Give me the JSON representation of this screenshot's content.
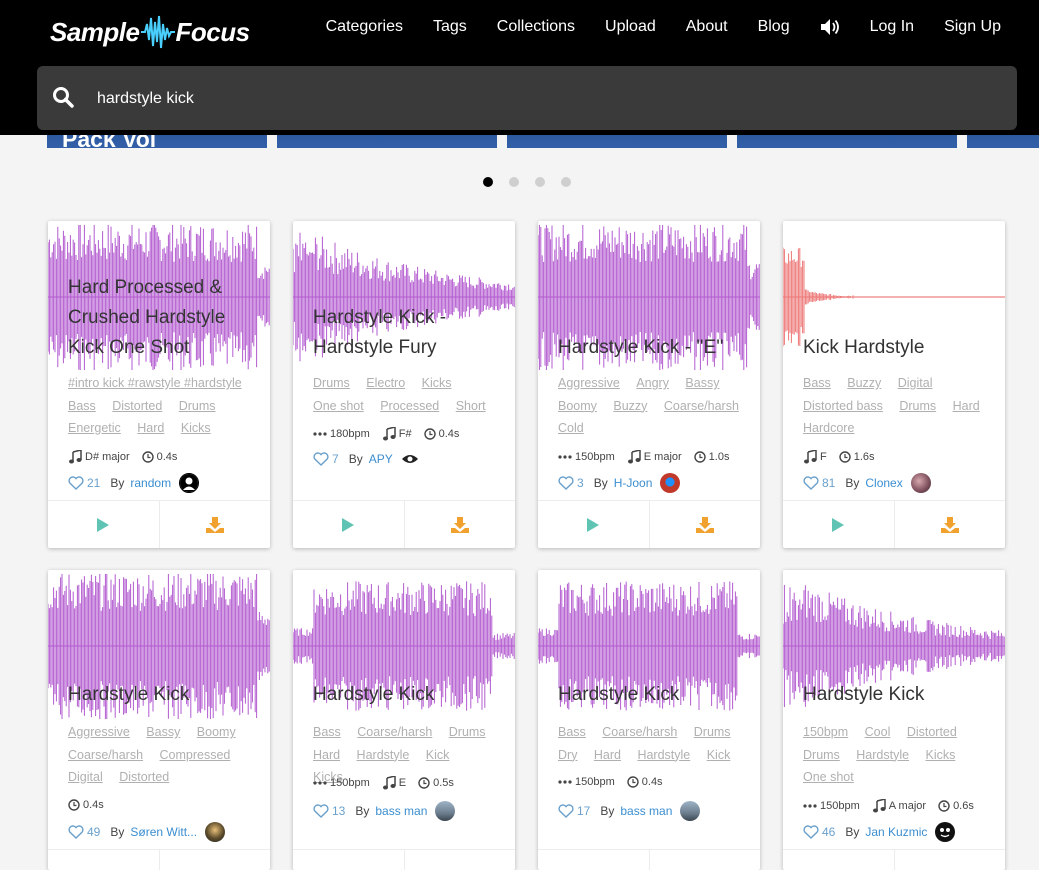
{
  "nav": {
    "logo_left": "Sample",
    "logo_right": "Focus",
    "links": [
      "Categories",
      "Tags",
      "Collections",
      "Upload",
      "About",
      "Blog"
    ],
    "login": "Log In",
    "signup": "Sign Up"
  },
  "search": {
    "value": "hardstyle kick"
  },
  "carousel": {
    "partial_text": "Pack Vol",
    "dots": 4,
    "active_dot": 1
  },
  "colors": {
    "wave": "#a339c6",
    "wave_red": "#e85a5a",
    "play": "#5fc4b3",
    "download": "#f0a12e",
    "like": "#6aa0cc",
    "author": "#3b8ed0"
  },
  "cards": [
    {
      "title": "Hard Processed & Crushed Hardstyle Kick One Shot",
      "tags": [
        "#intro kick #rawstyle #hardstyle",
        "Bass",
        "Distorted",
        "Drums",
        "Energetic",
        "Hard",
        "Kicks"
      ],
      "bpm": "",
      "key": "D# major",
      "duration": "0.4s",
      "likes": "21",
      "author": "random",
      "avatar": "user-icon"
    },
    {
      "title": "Hardstyle Kick - Hardstyle Fury",
      "tags": [
        "Drums",
        "Electro",
        "Kicks",
        "One shot",
        "Processed",
        "Short"
      ],
      "bpm": "180bpm",
      "key": "F#",
      "duration": "0.4s",
      "likes": "7",
      "author": "APY",
      "avatar": "logo-avatar"
    },
    {
      "title": "Hardstyle Kick - ''E''",
      "tags": [
        "Aggressive",
        "Angry",
        "Bassy",
        "Boomy",
        "Buzzy",
        "Coarse/harsh",
        "Cold"
      ],
      "bpm": "150bpm",
      "key": "E major",
      "duration": "1.0s",
      "likes": "3",
      "author": "H-Joon",
      "avatar": "red-avatar"
    },
    {
      "title": "Kick Hardstyle",
      "tags": [
        "Bass",
        "Buzzy",
        "Digital",
        "Distorted bass",
        "Drums",
        "Hard",
        "Hardcore"
      ],
      "bpm": "",
      "key": "F",
      "duration": "1.6s",
      "likes": "81",
      "author": "Clonex",
      "avatar": "photo-avatar"
    },
    {
      "title": "Hardstyle Kick",
      "tags": [
        "Aggressive",
        "Bassy",
        "Boomy",
        "Coarse/harsh",
        "Compressed",
        "Digital",
        "Distorted"
      ],
      "bpm": "",
      "key": "",
      "duration": "0.4s",
      "likes": "49",
      "author": "Søren Witt...",
      "avatar": "photo-avatar"
    },
    {
      "title": "Hardstyle Kick",
      "tags": [
        "Bass",
        "Coarse/harsh",
        "Drums",
        "Hard",
        "Hardstyle",
        "Kick",
        "Kicks"
      ],
      "bpm": "150bpm",
      "key": "E",
      "duration": "0.5s",
      "likes": "13",
      "author": "bass man",
      "avatar": "photo-avatar"
    },
    {
      "title": "Hardstyle Kick",
      "tags": [
        "Bass",
        "Coarse/harsh",
        "Drums",
        "Dry",
        "Hard",
        "Hardstyle",
        "Kick"
      ],
      "bpm": "150bpm",
      "key": "",
      "duration": "0.4s",
      "likes": "17",
      "author": "bass man",
      "avatar": "photo-avatar"
    },
    {
      "title": "Hardstyle Kick",
      "tags": [
        "150bpm",
        "Cool",
        "Distorted",
        "Drums",
        "Hardstyle",
        "Kicks",
        "One shot"
      ],
      "bpm": "150bpm",
      "key": "A major",
      "duration": "0.6s",
      "likes": "46",
      "author": "Jan Kuzmic",
      "avatar": "face-avatar"
    }
  ]
}
